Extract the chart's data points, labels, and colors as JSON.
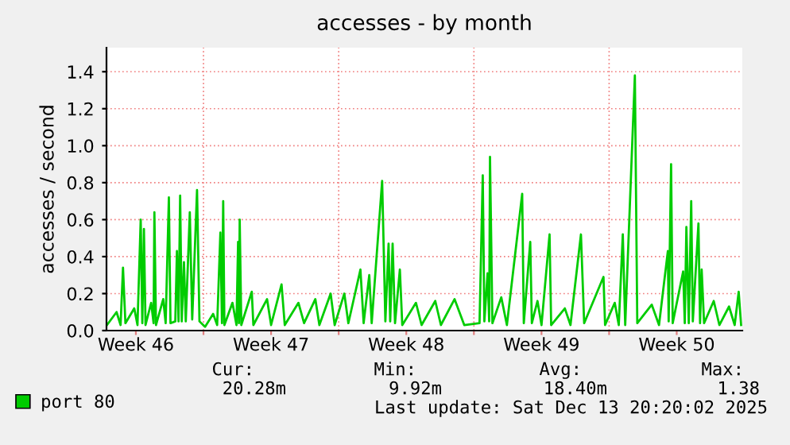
{
  "chart_data": {
    "type": "line",
    "title": "accesses - by month",
    "ylabel": "accesses / second",
    "x": [
      "2025-11-11T00:00",
      "2025-11-11T12:00",
      "2025-11-11T17:00",
      "2025-11-11T20:00",
      "2025-11-11T23:00",
      "2025-11-12T10:00",
      "2025-11-12T14:00",
      "2025-11-12T18:00",
      "2025-11-12T20:00",
      "2025-11-12T22:00",
      "2025-11-13T00:00",
      "2025-11-13T07:00",
      "2025-11-13T10:00",
      "2025-11-13T11:00",
      "2025-11-13T13:00",
      "2025-11-13T22:00",
      "2025-11-14T01:00",
      "2025-11-14T05:00",
      "2025-11-14T07:00",
      "2025-11-14T13:00",
      "2025-11-14T15:00",
      "2025-11-14T17:00",
      "2025-11-14T19:00",
      "2025-11-14T21:00",
      "2025-11-14T23:45",
      "2025-11-15T02:00",
      "2025-11-15T07:00",
      "2025-11-15T10:00",
      "2025-11-15T16:00",
      "2025-11-15T19:00",
      "2025-11-16T02:00",
      "2025-11-16T12:00",
      "2025-11-16T17:00",
      "2025-11-16T21:00",
      "2025-11-16T23:00",
      "2025-11-17T00:30",
      "2025-11-17T02:00",
      "2025-11-17T12:00",
      "2025-11-17T17:00",
      "2025-11-17T19:00",
      "2025-11-17T20:00",
      "2025-11-17T21:00",
      "2025-11-17T23:00",
      "2025-11-18T12:00",
      "2025-11-18T14:00",
      "2025-11-19T07:00",
      "2025-11-19T12:00",
      "2025-11-20T01:00",
      "2025-11-20T05:00",
      "2025-11-20T22:00",
      "2025-11-21T05:00",
      "2025-11-21T19:00",
      "2025-11-22T00:00",
      "2025-11-22T14:00",
      "2025-11-22T19:00",
      "2025-11-23T07:00",
      "2025-11-23T12:00",
      "2025-11-24T03:00",
      "2025-11-24T07:00",
      "2025-11-24T14:00",
      "2025-11-24T17:00",
      "2025-11-25T06:00",
      "2025-11-25T10:00",
      "2025-11-25T14:00",
      "2025-11-25T16:00",
      "2025-11-25T19:00",
      "2025-11-25T22:00",
      "2025-11-26T04:00",
      "2025-11-26T07:00",
      "2025-11-27T00:00",
      "2025-11-27T07:00",
      "2025-11-28T00:00",
      "2025-11-28T07:00",
      "2025-11-29T00:00",
      "2025-11-29T12:00",
      "2025-11-30T07:00",
      "2025-11-30T11:00",
      "2025-11-30T13:00",
      "2025-11-30T17:00",
      "2025-11-30T19:00",
      "2025-11-30T20:00",
      "2025-11-30T23:00",
      "2025-12-01T10:00",
      "2025-12-01T17:00",
      "2025-12-02T12:00",
      "2025-12-02T14:00",
      "2025-12-02T22:00",
      "2025-12-03T00:00",
      "2025-12-03T07:00",
      "2025-12-03T12:00",
      "2025-12-03T22:00",
      "2025-12-04T00:00",
      "2025-12-04T17:00",
      "2025-12-05T00:00",
      "2025-12-05T13:00",
      "2025-12-05T17:00",
      "2025-12-06T17:00",
      "2025-12-06T19:00",
      "2025-12-07T07:00",
      "2025-12-07T12:00",
      "2025-12-07T17:00",
      "2025-12-07T20:00",
      "2025-12-08T08:00",
      "2025-12-08T11:00",
      "2025-12-09T05:00",
      "2025-12-09T14:00",
      "2025-12-10T01:00",
      "2025-12-10T02:00",
      "2025-12-10T05:00",
      "2025-12-10T07:00",
      "2025-12-10T20:00",
      "2025-12-10T22:00",
      "2025-12-11T00:00",
      "2025-12-11T03:00",
      "2025-12-11T06:00",
      "2025-12-11T08:00",
      "2025-12-11T15:00",
      "2025-12-11T17:00",
      "2025-12-11T19:00",
      "2025-12-11T22:00",
      "2025-12-12T10:00",
      "2025-12-12T17:00",
      "2025-12-13T05:00",
      "2025-12-13T12:00",
      "2025-12-13T17:00",
      "2025-12-13T20:00"
    ],
    "series": [
      {
        "name": "port 80",
        "color": "#00cc00",
        "values": [
          0.03,
          0.1,
          0.03,
          0.34,
          0.04,
          0.12,
          0.03,
          0.6,
          0.04,
          0.55,
          0.03,
          0.15,
          0.04,
          0.64,
          0.03,
          0.17,
          0.04,
          0.72,
          0.04,
          0.05,
          0.43,
          0.05,
          0.73,
          0.05,
          0.37,
          0.05,
          0.64,
          0.06,
          0.76,
          0.05,
          0.02,
          0.09,
          0.03,
          0.53,
          0.04,
          0.7,
          0.03,
          0.15,
          0.03,
          0.48,
          0.04,
          0.6,
          0.03,
          0.21,
          0.03,
          0.17,
          0.03,
          0.25,
          0.03,
          0.15,
          0.04,
          0.17,
          0.03,
          0.2,
          0.03,
          0.2,
          0.04,
          0.33,
          0.04,
          0.3,
          0.04,
          0.81,
          0.05,
          0.47,
          0.05,
          0.47,
          0.04,
          0.33,
          0.03,
          0.15,
          0.03,
          0.16,
          0.03,
          0.17,
          0.03,
          0.04,
          0.84,
          0.05,
          0.31,
          0.05,
          0.94,
          0.04,
          0.18,
          0.03,
          0.74,
          0.04,
          0.48,
          0.04,
          0.16,
          0.03,
          0.52,
          0.03,
          0.12,
          0.03,
          0.52,
          0.04,
          0.29,
          0.03,
          0.15,
          0.03,
          0.52,
          0.03,
          1.38,
          0.04,
          0.14,
          0.03,
          0.43,
          0.05,
          0.9,
          0.04,
          0.32,
          0.04,
          0.56,
          0.04,
          0.7,
          0.05,
          0.58,
          0.04,
          0.33,
          0.04,
          0.16,
          0.03,
          0.13,
          0.03,
          0.21,
          0.03
        ]
      }
    ],
    "xlim": [
      "2025-11-10T23:30",
      "2025-12-13T21:30"
    ],
    "xticks": [
      {
        "value": "2025-11-12T12:00",
        "label": "Week 46"
      },
      {
        "value": "2025-11-16",
        "label": null
      },
      {
        "value": "2025-11-19T12:00",
        "label": "Week 47"
      },
      {
        "value": "2025-11-23",
        "label": null
      },
      {
        "value": "2025-11-26T12:00",
        "label": "Week 48"
      },
      {
        "value": "2025-11-30",
        "label": null
      },
      {
        "value": "2025-12-03T12:00",
        "label": "Week 49"
      },
      {
        "value": "2025-12-07",
        "label": null
      },
      {
        "value": "2025-12-10T12:00",
        "label": "Week 50"
      }
    ],
    "ylim": [
      0,
      1.53
    ],
    "yticks": [
      {
        "value": 0,
        "label": "0.0"
      },
      0.2,
      0.4,
      0.6,
      0.8,
      {
        "value": 1,
        "label": "1.0"
      },
      1.2,
      1.4
    ],
    "grid": true,
    "legend": "bottom",
    "marker": "none",
    "line_style": "solid",
    "annotations": [
      "Cur:",
      "Min:",
      "Avg:",
      "Max:",
      "20.28m",
      "9.92m",
      "18.40m",
      "1.38",
      "Last update: Sat Dec 13 20:20:02 2025"
    ]
  }
}
